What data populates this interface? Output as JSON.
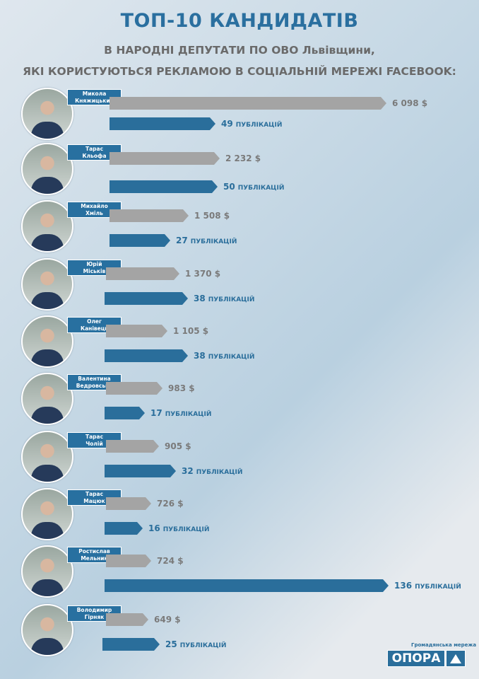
{
  "title": "ТОП-10 кандидатів",
  "subtitle_line1": "в народні депутати по ОВО Львівщини,",
  "subtitle_line2": "які користуються рекламою  в соціальній мережі FACEBOOK:",
  "chart_data": {
    "type": "bar",
    "orientation": "horizontal",
    "categories": [
      "Микола Княжицький",
      "Тарас Кльофа",
      "Михайло Хміль",
      "Юрій Міськів",
      "Олег Канівець",
      "Валентина Ведровська",
      "Тарас Чолій",
      "Тарас Мацюк",
      "Ростислав Мельник",
      "Володимир Гірняк"
    ],
    "series": [
      {
        "unit": "$",
        "color": "#a4a4a4",
        "values": [
          6098,
          2232,
          1508,
          1370,
          1105,
          983,
          905,
          726,
          724,
          649
        ],
        "labels": [
          "6 098 $",
          "2 232 $",
          "1 508 $",
          "1 370 $",
          "1 105 $",
          "983 $",
          "905 $",
          "726 $",
          "724 $",
          "649 $"
        ]
      },
      {
        "unit": "публікацій",
        "color": "#2a6e9b",
        "values": [
          49,
          50,
          27,
          38,
          38,
          17,
          32,
          16,
          136,
          25
        ]
      }
    ]
  },
  "rows": [
    {
      "first": "Микола",
      "last": "Княжицький"
    },
    {
      "first": "Тарас",
      "last": "Кльофа"
    },
    {
      "first": "Михайло",
      "last": "Хміль"
    },
    {
      "first": "Юрій",
      "last": "Міськів"
    },
    {
      "first": "Олег",
      "last": "Канівець"
    },
    {
      "first": "Валентина",
      "last": "Ведровська"
    },
    {
      "first": "Тарас",
      "last": "Чолій"
    },
    {
      "first": "Тарас",
      "last": "Мацюк"
    },
    {
      "first": "Ростислав",
      "last": "Мельник"
    },
    {
      "first": "Володимир",
      "last": "Гірняк"
    }
  ],
  "pub_unit": "публікацій",
  "logo": {
    "caption": "Громадянська мережа",
    "name": "ОПОРА"
  }
}
